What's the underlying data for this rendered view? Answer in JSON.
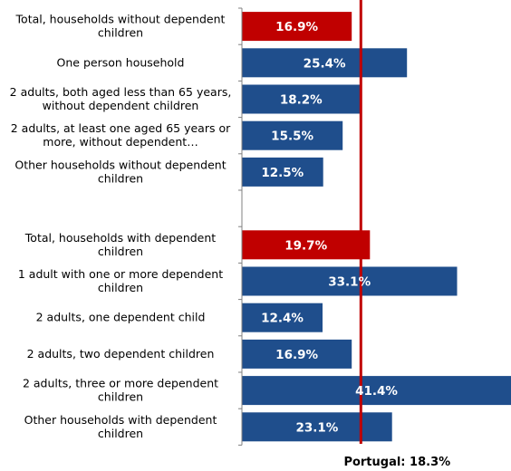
{
  "chart_data": {
    "type": "bar",
    "orientation": "horizontal",
    "categories": [
      "Total, households without dependent children",
      "One person household",
      "2 adults, both aged less than 65 years, without dependent children",
      "2 adults, at least one aged 65 years or more, without dependent…",
      "Other households without dependent children",
      "",
      "Total, households with dependent children",
      "1 adult with one or more dependent children",
      "2 adults, one dependent child",
      "2 adults, two dependent children",
      "2 adults, three or more dependent children",
      "Other households with dependent children"
    ],
    "values": [
      16.9,
      25.4,
      18.2,
      15.5,
      12.5,
      null,
      19.7,
      33.1,
      12.4,
      16.9,
      41.4,
      23.1
    ],
    "value_labels": [
      "16.9%",
      "25.4%",
      "18.2%",
      "15.5%",
      "12.5%",
      "",
      "19.7%",
      "33.1%",
      "12.4%",
      "16.9%",
      "41.4%",
      "23.1%"
    ],
    "highlight": [
      true,
      false,
      false,
      false,
      false,
      false,
      true,
      false,
      false,
      false,
      false,
      false
    ],
    "xlim": [
      0,
      41.4
    ],
    "reference_line": {
      "value": 18.3,
      "label": "Portugal: 18.3%"
    },
    "colors": {
      "bar": "#1f4e8c",
      "highlight": "#c00000",
      "reference": "#c00000",
      "axis": "#808080"
    }
  }
}
